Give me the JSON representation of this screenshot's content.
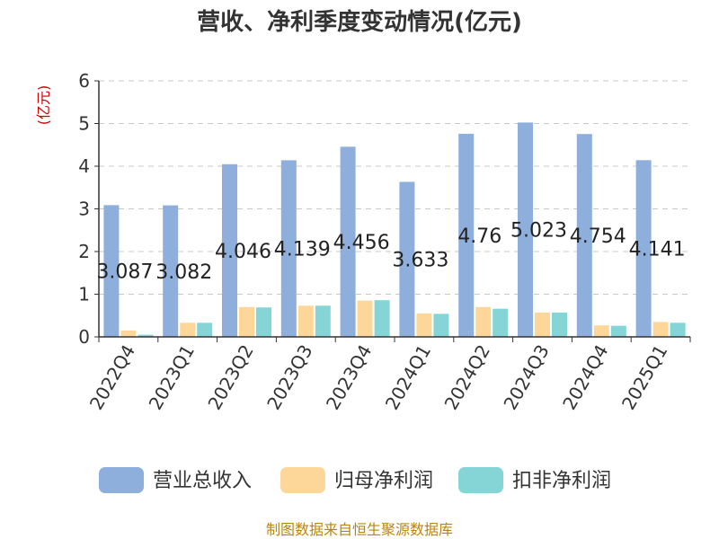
{
  "chart_data": {
    "type": "bar",
    "title": "营收、净利季度变动情况(亿元)",
    "ylabel": "(亿元)",
    "ylim": [
      0,
      6
    ],
    "yticks": [
      0,
      1,
      2,
      3,
      4,
      5,
      6
    ],
    "grid": true,
    "legend_position": "bottom",
    "categories": [
      "2022Q4",
      "2023Q1",
      "2023Q2",
      "2023Q3",
      "2023Q4",
      "2024Q1",
      "2024Q2",
      "2024Q3",
      "2024Q4",
      "2025Q1"
    ],
    "series": [
      {
        "name": "营业总收入",
        "color": "#8eaedc",
        "values": [
          3.087,
          3.082,
          4.046,
          4.139,
          4.456,
          3.633,
          4.76,
          5.023,
          4.754,
          4.141
        ],
        "labels": [
          "3.087",
          "3.082",
          "4.046",
          "4.139",
          "4.456",
          "3.633",
          "4.76",
          "5.023",
          "4.754",
          "4.141"
        ]
      },
      {
        "name": "归母净利润",
        "color": "#fdd79a",
        "values": [
          0.15,
          0.33,
          0.7,
          0.73,
          0.85,
          0.55,
          0.7,
          0.57,
          0.27,
          0.35
        ]
      },
      {
        "name": "扣非净利润",
        "color": "#85d5d6",
        "values": [
          0.05,
          0.33,
          0.69,
          0.73,
          0.86,
          0.54,
          0.66,
          0.57,
          0.26,
          0.33
        ]
      }
    ],
    "unit_color": "#cc0000",
    "source_color": "#b8860b"
  },
  "source": "制图数据来自恒生聚源数据库"
}
